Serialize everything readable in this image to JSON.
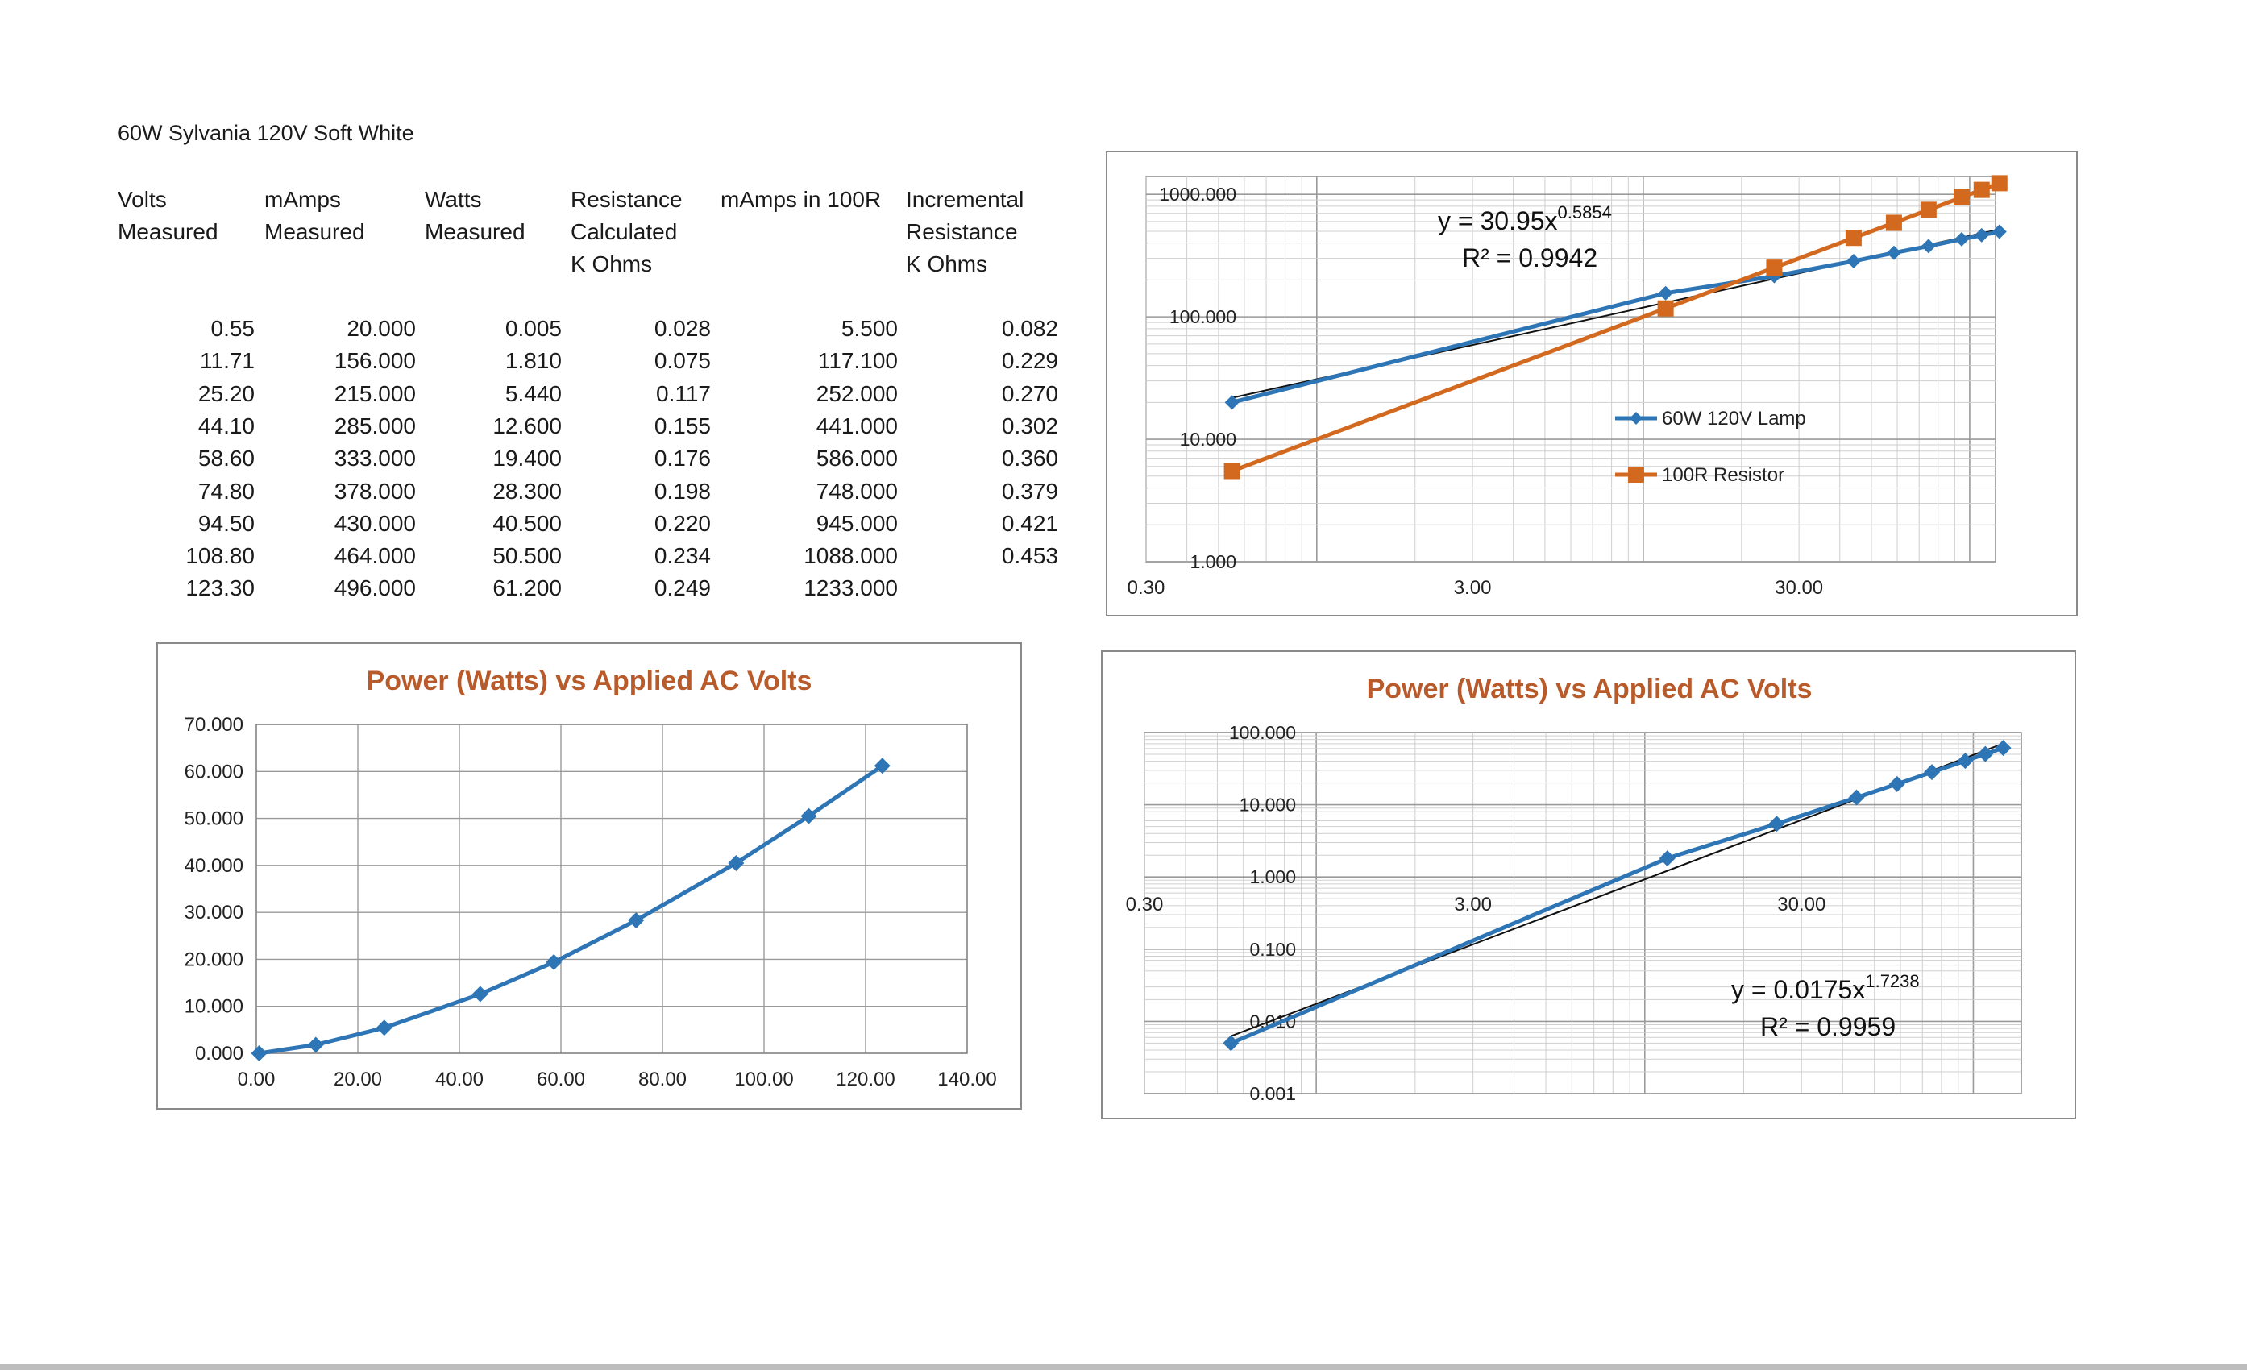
{
  "title": "60W Sylvania 120V Soft White",
  "table": {
    "headers": [
      [
        "Volts",
        "Measured"
      ],
      [
        "mAmps",
        "Measured"
      ],
      [
        "Watts",
        "Measured"
      ],
      [
        "Resistance",
        "Calculated",
        "K Ohms"
      ],
      [
        "mAmps in 100R"
      ],
      [
        "Incremental",
        "Resistance",
        "K Ohms"
      ]
    ],
    "rows": [
      [
        "0.55",
        "20.000",
        "0.005",
        "0.028",
        "5.500",
        "0.082"
      ],
      [
        "11.71",
        "156.000",
        "1.810",
        "0.075",
        "117.100",
        "0.229"
      ],
      [
        "25.20",
        "215.000",
        "5.440",
        "0.117",
        "252.000",
        "0.270"
      ],
      [
        "44.10",
        "285.000",
        "12.600",
        "0.155",
        "441.000",
        "0.302"
      ],
      [
        "58.60",
        "333.000",
        "19.400",
        "0.176",
        "586.000",
        "0.360"
      ],
      [
        "74.80",
        "378.000",
        "28.300",
        "0.198",
        "748.000",
        "0.379"
      ],
      [
        "94.50",
        "430.000",
        "40.500",
        "0.220",
        "945.000",
        "0.421"
      ],
      [
        "108.80",
        "464.000",
        "50.500",
        "0.234",
        "1088.000",
        "0.453"
      ],
      [
        "123.30",
        "496.000",
        "61.200",
        "0.249",
        "1233.000",
        ""
      ]
    ]
  },
  "chart_data": [
    {
      "id": "current-loglog",
      "type": "scatter",
      "title": "",
      "xscale": "log",
      "yscale": "log",
      "xlim": [
        0.3,
        120
      ],
      "ylim": [
        1,
        1400
      ],
      "xticks": [
        "0.30",
        "3.00",
        "30.00"
      ],
      "yticks": [
        "1.000",
        "10.000",
        "100.000",
        "1000.000"
      ],
      "grid": true,
      "legend": "right",
      "series": [
        {
          "name": "60W 120V Lamp",
          "color": "#2e75b6",
          "marker": "diamond",
          "x": [
            0.55,
            11.71,
            25.2,
            44.1,
            58.6,
            74.8,
            94.5,
            108.8,
            123.3
          ],
          "y": [
            20,
            156,
            215,
            285,
            333,
            378,
            430,
            464,
            496
          ]
        },
        {
          "name": "100R Resistor",
          "color": "#d2691e",
          "marker": "square",
          "x": [
            0.55,
            11.71,
            25.2,
            44.1,
            58.6,
            74.8,
            94.5,
            108.8,
            123.3
          ],
          "y": [
            5.5,
            117.1,
            252,
            441,
            586,
            748,
            945,
            1088,
            1233
          ]
        }
      ],
      "trendline": {
        "a": 30.95,
        "b": 0.5854,
        "equation": "y = 30.95x",
        "exponent": "0.5854",
        "r2": "R² = 0.9942"
      }
    },
    {
      "id": "power-linear",
      "type": "line",
      "title": "Power (Watts) vs Applied AC Volts",
      "xscale": "linear",
      "yscale": "linear",
      "xlim": [
        0,
        140
      ],
      "ylim": [
        0,
        70
      ],
      "xticks": [
        "0.00",
        "20.00",
        "40.00",
        "60.00",
        "80.00",
        "100.00",
        "120.00",
        "140.00"
      ],
      "yticks": [
        "0.000",
        "10.000",
        "20.000",
        "30.000",
        "40.000",
        "50.000",
        "60.000",
        "70.000"
      ],
      "grid": true,
      "series": [
        {
          "color": "#2e75b6",
          "marker": "diamond",
          "x": [
            0.55,
            11.71,
            25.2,
            44.1,
            58.6,
            74.8,
            94.5,
            108.8,
            123.3
          ],
          "y": [
            0.005,
            1.81,
            5.44,
            12.6,
            19.4,
            28.3,
            40.5,
            50.5,
            61.2
          ]
        }
      ]
    },
    {
      "id": "power-loglog",
      "type": "scatter",
      "title": "Power (Watts) vs Applied AC Volts",
      "xscale": "log",
      "yscale": "log",
      "xlim": [
        0.3,
        140
      ],
      "ylim": [
        0.001,
        100
      ],
      "xticks": [
        "0.30",
        "3.00",
        "30.00"
      ],
      "yticks": [
        "0.001",
        "0.010",
        "0.100",
        "1.000",
        "10.000",
        "100.000"
      ],
      "grid": true,
      "series": [
        {
          "color": "#2e75b6",
          "marker": "diamond",
          "x": [
            0.55,
            11.71,
            25.2,
            44.1,
            58.6,
            74.8,
            94.5,
            108.8,
            123.3
          ],
          "y": [
            0.005,
            1.81,
            5.44,
            12.6,
            19.4,
            28.3,
            40.5,
            50.5,
            61.2
          ]
        }
      ],
      "trendline": {
        "a": 0.0175,
        "b": 1.7238,
        "equation": "y = 0.0175x",
        "exponent": "1.7238",
        "r2": "R² = 0.9959"
      }
    }
  ]
}
